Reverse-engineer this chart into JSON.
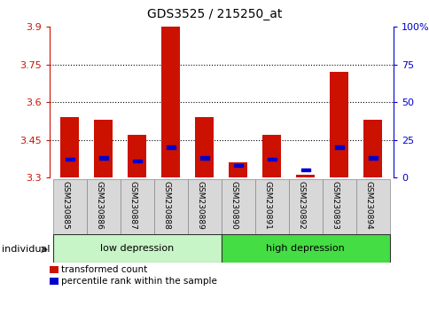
{
  "title": "GDS3525 / 215250_at",
  "samples": [
    "GSM230885",
    "GSM230886",
    "GSM230887",
    "GSM230888",
    "GSM230889",
    "GSM230890",
    "GSM230891",
    "GSM230892",
    "GSM230893",
    "GSM230894"
  ],
  "red_values": [
    3.54,
    3.53,
    3.47,
    3.9,
    3.54,
    3.36,
    3.47,
    3.31,
    3.72,
    3.53
  ],
  "blue_values_pct": [
    12,
    13,
    11,
    20,
    13,
    8,
    12,
    5,
    20,
    13
  ],
  "ymin": 3.3,
  "ymax": 3.9,
  "yticks": [
    3.3,
    3.45,
    3.6,
    3.75,
    3.9
  ],
  "pct_ticks": [
    0,
    25,
    50,
    75,
    100
  ],
  "groups": [
    {
      "label": "low depression",
      "start": 0,
      "end": 5,
      "color": "#c8f5c8"
    },
    {
      "label": "high depression",
      "start": 5,
      "end": 10,
      "color": "#44dd44"
    }
  ],
  "legend_items": [
    {
      "label": "transformed count",
      "color": "#cc1100"
    },
    {
      "label": "percentile rank within the sample",
      "color": "#0000cc"
    }
  ],
  "bar_color": "#cc1100",
  "blue_color": "#0000cc",
  "bar_width": 0.55,
  "left_axis_color": "#cc1100",
  "right_axis_color": "#0000cc",
  "individual_label": "individual"
}
